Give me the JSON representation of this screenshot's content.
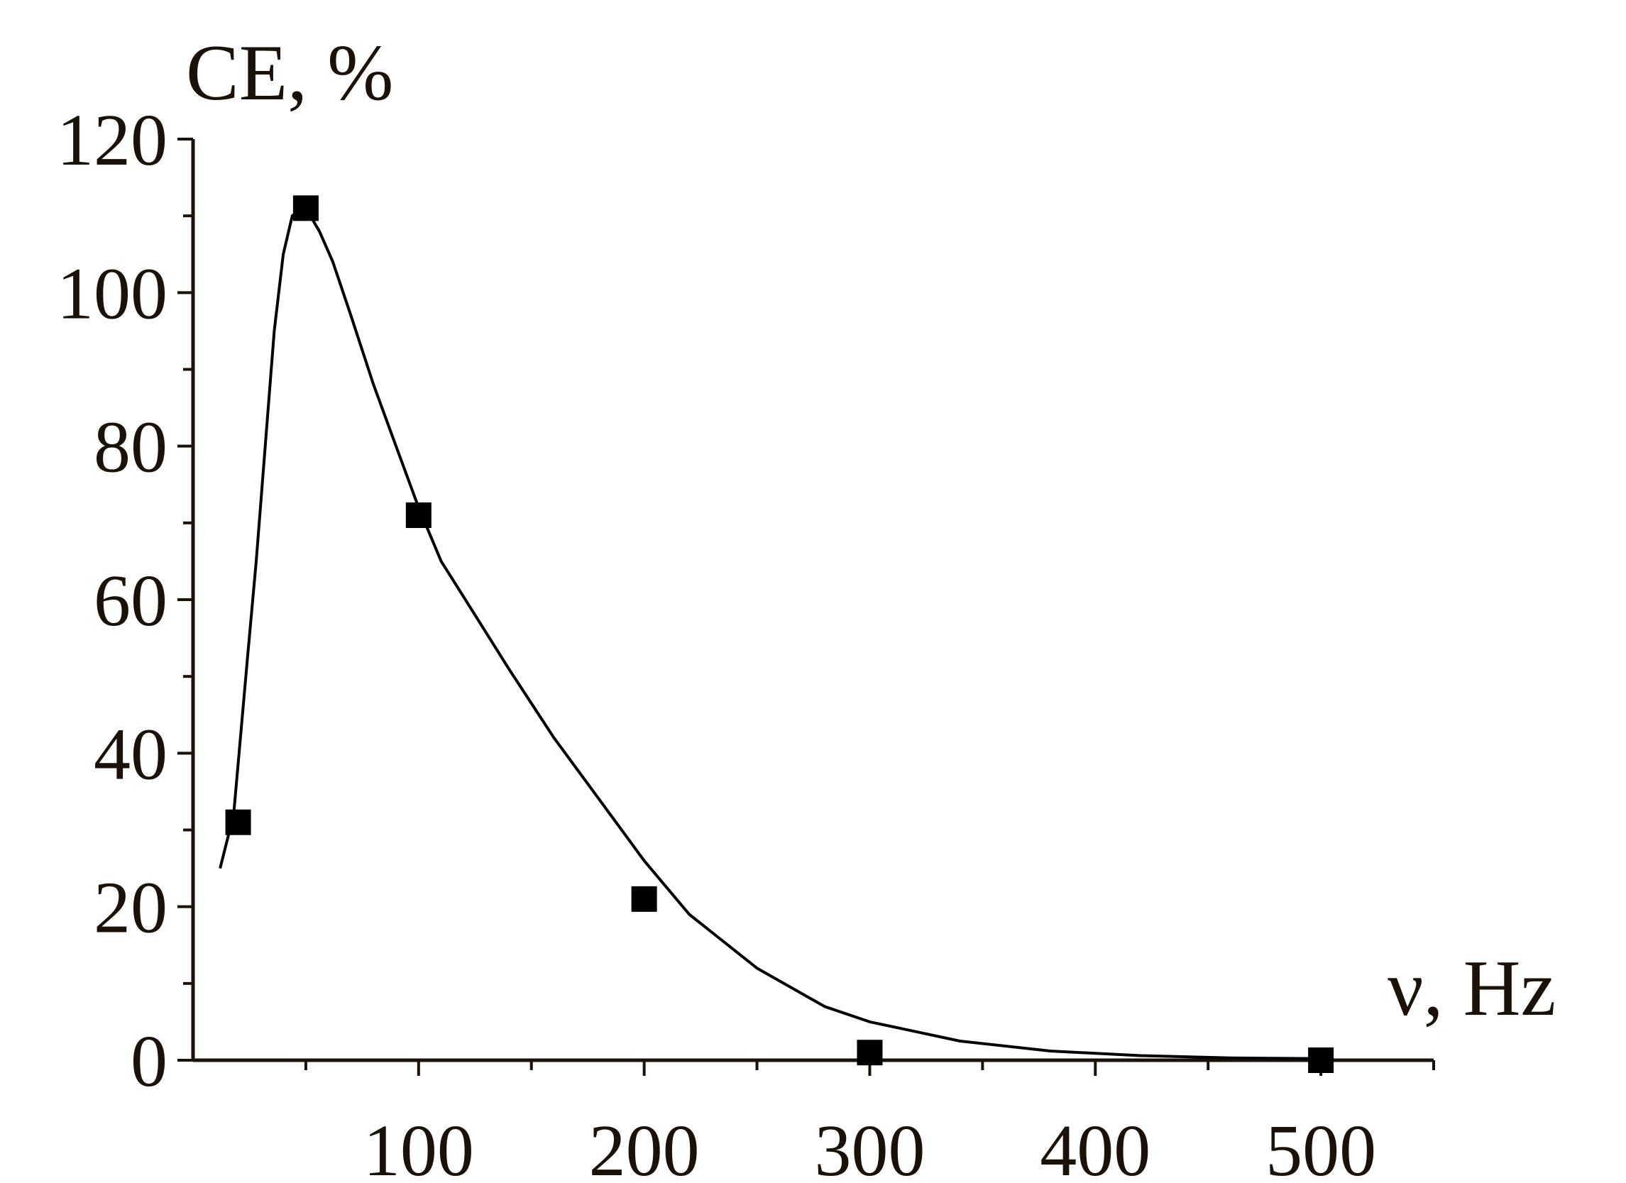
{
  "chart_data": {
    "type": "scatter",
    "ylabel": "CE, %",
    "xlabel": "ν, Hz",
    "xlim": [
      0,
      550
    ],
    "ylim": [
      0,
      120
    ],
    "x_ticks": [
      100,
      200,
      300,
      400,
      500
    ],
    "y_ticks": [
      0,
      20,
      40,
      60,
      80,
      100,
      120
    ],
    "grid": false,
    "legend": "none",
    "colors": {
      "text": "#1a1208",
      "marks": "#000000"
    },
    "series": [
      {
        "type": "scatter",
        "x": [
          20,
          50,
          100,
          200,
          300,
          500
        ],
        "y": [
          31,
          111,
          71,
          21,
          1,
          0
        ]
      },
      {
        "type": "line",
        "x": [
          12,
          18,
          24,
          28,
          32,
          36,
          40,
          44,
          48,
          52,
          56,
          62,
          70,
          80,
          90,
          100,
          110,
          125,
          140,
          160,
          180,
          200,
          220,
          250,
          280,
          300,
          340,
          380,
          420,
          460,
          500
        ],
        "y": [
          25,
          32,
          52,
          65,
          80,
          95,
          105,
          110,
          111,
          110,
          108,
          104,
          97,
          88,
          80,
          72,
          65,
          58,
          51,
          42,
          34,
          26,
          19,
          12,
          7,
          5,
          2.5,
          1.2,
          0.6,
          0.3,
          0.2
        ]
      }
    ]
  }
}
